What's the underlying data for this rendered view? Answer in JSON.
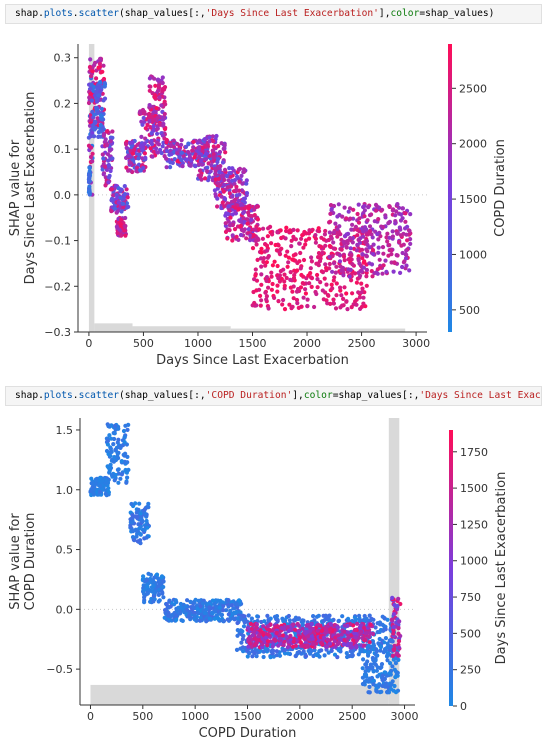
{
  "cells": [
    {
      "code_tokens": [
        {
          "t": "shap",
          "k": "plain"
        },
        {
          "t": ".",
          "k": "plain"
        },
        {
          "t": "plots",
          "k": "mod"
        },
        {
          "t": ".",
          "k": "plain"
        },
        {
          "t": "scatter",
          "k": "mod"
        },
        {
          "t": "(shap_values[:,",
          "k": "plain"
        },
        {
          "t": "'Days Since Last Exacerbation'",
          "k": "str"
        },
        {
          "t": "],",
          "k": "plain"
        },
        {
          "t": "color",
          "k": "kw"
        },
        {
          "t": "=shap_values)",
          "k": "plain"
        }
      ]
    },
    {
      "code_tokens": [
        {
          "t": "shap",
          "k": "plain"
        },
        {
          "t": ".",
          "k": "plain"
        },
        {
          "t": "plots",
          "k": "mod"
        },
        {
          "t": ".",
          "k": "plain"
        },
        {
          "t": "scatter",
          "k": "mod"
        },
        {
          "t": "(shap_values[:,",
          "k": "plain"
        },
        {
          "t": "'COPD Duration'",
          "k": "str"
        },
        {
          "t": "],",
          "k": "plain"
        },
        {
          "t": "color",
          "k": "kw"
        },
        {
          "t": "=shap_values[:,",
          "k": "plain"
        },
        {
          "t": "'Days Since Last Exacerbation'",
          "k": "str"
        },
        {
          "t": "])",
          "k": "plain"
        }
      ]
    }
  ],
  "colors": {
    "low": "#1e88e5",
    "high": "#ff0d57",
    "hist": "#d9d9d9",
    "zero_line": "#c8c8c8"
  },
  "chart_data": [
    {
      "type": "scatter",
      "xlabel": "Days Since Last Exacerbation",
      "ylabel": "SHAP value for\nDays Since Last Exacerbation",
      "colorbar_label": "COPD Duration",
      "xlim": [
        -100,
        3100
      ],
      "ylim": [
        -0.3,
        0.33
      ],
      "xticks": [
        0,
        500,
        1000,
        1500,
        2000,
        2500,
        3000
      ],
      "yticks": [
        -0.3,
        -0.2,
        -0.1,
        0.0,
        0.1,
        0.2,
        0.3
      ],
      "ytick_labels": [
        "−0.3",
        "−0.2",
        "−0.1",
        "0.0",
        "0.1",
        "0.2",
        "0.3"
      ],
      "color_range": [
        300,
        2900
      ],
      "cticks": [
        500,
        1000,
        1500,
        2000,
        2500
      ],
      "hist": [
        {
          "x0": 0,
          "x1": 50,
          "h": 1.0
        },
        {
          "x0": 50,
          "x1": 400,
          "h": 0.03
        },
        {
          "x0": 400,
          "x1": 1300,
          "h": 0.02
        },
        {
          "x0": 1300,
          "x1": 2900,
          "h": 0.012
        }
      ],
      "groups": [
        {
          "x": [
            0,
            35
          ],
          "y": [
            0.0,
            0.28
          ],
          "c": [
            300,
            2800
          ]
        },
        {
          "x": [
            0,
            10
          ],
          "y": [
            0.0,
            0.06
          ],
          "c": [
            300,
            900
          ]
        },
        {
          "x": [
            0,
            140
          ],
          "y": [
            0.15,
            0.3
          ],
          "c": [
            1800,
            2900
          ]
        },
        {
          "x": [
            20,
            150
          ],
          "y": [
            0.12,
            0.25
          ],
          "c": [
            500,
            1400
          ]
        },
        {
          "x": [
            120,
            220
          ],
          "y": [
            0.02,
            0.14
          ],
          "c": [
            900,
            2700
          ]
        },
        {
          "x": [
            200,
            360
          ],
          "y": [
            -0.04,
            0.02
          ],
          "c": [
            800,
            2700
          ]
        },
        {
          "x": [
            250,
            340
          ],
          "y": [
            -0.09,
            -0.05
          ],
          "c": [
            1800,
            2800
          ]
        },
        {
          "x": [
            340,
            520
          ],
          "y": [
            0.05,
            0.12
          ],
          "c": [
            800,
            2800
          ]
        },
        {
          "x": [
            460,
            700
          ],
          "y": [
            0.08,
            0.19
          ],
          "c": [
            1200,
            2800
          ]
        },
        {
          "x": [
            550,
            700
          ],
          "y": [
            0.15,
            0.26
          ],
          "c": [
            1800,
            2800
          ]
        },
        {
          "x": [
            700,
            1100
          ],
          "y": [
            0.06,
            0.12
          ],
          "c": [
            800,
            2800
          ]
        },
        {
          "x": [
            1000,
            1250
          ],
          "y": [
            0.03,
            0.13
          ],
          "c": [
            1000,
            2800
          ]
        },
        {
          "x": [
            1150,
            1450
          ],
          "y": [
            -0.03,
            0.06
          ],
          "c": [
            1200,
            2800
          ]
        },
        {
          "x": [
            1250,
            1550
          ],
          "y": [
            -0.1,
            -0.02
          ],
          "c": [
            1500,
            2800
          ]
        },
        {
          "x": [
            1500,
            2550
          ],
          "y": [
            -0.25,
            -0.07
          ],
          "c": [
            2300,
            2900
          ]
        },
        {
          "x": [
            2200,
            2950
          ],
          "y": [
            -0.18,
            -0.02
          ],
          "c": [
            1700,
            2600
          ]
        }
      ]
    },
    {
      "type": "scatter",
      "xlabel": "COPD Duration",
      "ylabel": "SHAP value for\nCOPD Duration",
      "colorbar_label": "Days Since Last Exacerbation",
      "xlim": [
        -100,
        3100
      ],
      "ylim": [
        -0.8,
        1.6
      ],
      "xticks": [
        0,
        500,
        1000,
        1500,
        2000,
        2500,
        3000
      ],
      "yticks": [
        -0.5,
        0.0,
        0.5,
        1.0,
        1.5
      ],
      "ytick_labels": [
        "−0.5",
        "0.0",
        "0.5",
        "1.0",
        "1.5"
      ],
      "color_range": [
        0,
        1900
      ],
      "cticks": [
        0,
        250,
        500,
        750,
        1000,
        1250,
        1500,
        1750
      ],
      "hist": [
        {
          "x0": 0,
          "x1": 2850,
          "h": 0.07
        },
        {
          "x0": 2850,
          "x1": 2950,
          "h": 1.0
        }
      ],
      "groups": [
        {
          "x": [
            0,
            180
          ],
          "y": [
            0.95,
            1.1
          ],
          "c": [
            0,
            300
          ]
        },
        {
          "x": [
            150,
            370
          ],
          "y": [
            1.05,
            1.55
          ],
          "c": [
            0,
            300
          ]
        },
        {
          "x": [
            380,
            560
          ],
          "y": [
            0.55,
            0.9
          ],
          "c": [
            0,
            400
          ]
        },
        {
          "x": [
            500,
            700
          ],
          "y": [
            0.05,
            0.3
          ],
          "c": [
            0,
            300
          ]
        },
        {
          "x": [
            700,
            1450
          ],
          "y": [
            -0.1,
            0.08
          ],
          "c": [
            0,
            400
          ]
        },
        {
          "x": [
            1400,
            2900
          ],
          "y": [
            -0.4,
            -0.05
          ],
          "c": [
            0,
            450
          ]
        },
        {
          "x": [
            1500,
            2700
          ],
          "y": [
            -0.32,
            -0.12
          ],
          "c": [
            900,
            1800
          ]
        },
        {
          "x": [
            2600,
            2950
          ],
          "y": [
            -0.7,
            -0.3
          ],
          "c": [
            0,
            300
          ]
        },
        {
          "x": [
            2880,
            2960
          ],
          "y": [
            -0.4,
            0.1
          ],
          "c": [
            600,
            1800
          ]
        }
      ]
    }
  ]
}
